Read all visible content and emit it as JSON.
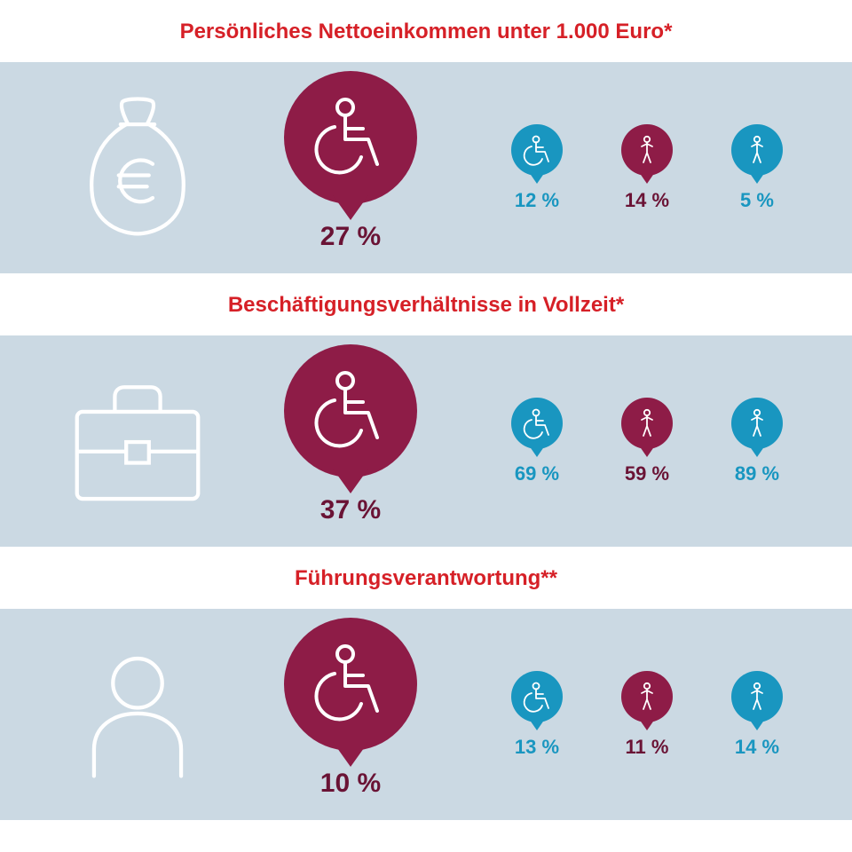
{
  "colors": {
    "panel_bg": "#cbd9e3",
    "white": "#ffffff",
    "heading": "#d62027",
    "maroon": "#8e1c47",
    "maroon_text": "#6a1335",
    "teal": "#1996c0",
    "teal_text": "#1996c0"
  },
  "sizes": {
    "heading_font": 24,
    "big_label_font": 30,
    "small_label_font": 22,
    "big_circle": 150,
    "small_circle": 58
  },
  "sections": [
    {
      "title": "Persönliches Nettoeinkommen unter 1.000 Euro*",
      "topic_icon": "money-bag-euro",
      "big": {
        "icon": "wheelchair",
        "color": "maroon",
        "value": "27 %"
      },
      "small": [
        {
          "icon": "wheelchair",
          "color": "teal",
          "value": "12 %"
        },
        {
          "icon": "person",
          "color": "maroon",
          "value": "14 %"
        },
        {
          "icon": "person",
          "color": "teal",
          "value": "5 %"
        }
      ]
    },
    {
      "title": "Beschäftigungsverhältnisse in Vollzeit*",
      "topic_icon": "briefcase",
      "big": {
        "icon": "wheelchair",
        "color": "maroon",
        "value": "37 %"
      },
      "small": [
        {
          "icon": "wheelchair",
          "color": "teal",
          "value": "69 %"
        },
        {
          "icon": "person",
          "color": "maroon",
          "value": "59 %"
        },
        {
          "icon": "person",
          "color": "teal",
          "value": "89 %"
        }
      ]
    },
    {
      "title": "Führungsverantwortung**",
      "topic_icon": "person-outline",
      "big": {
        "icon": "wheelchair",
        "color": "maroon",
        "value": "10 %"
      },
      "small": [
        {
          "icon": "wheelchair",
          "color": "teal",
          "value": "13 %"
        },
        {
          "icon": "person",
          "color": "maroon",
          "value": "11 %"
        },
        {
          "icon": "person",
          "color": "teal",
          "value": "14 %"
        }
      ]
    }
  ]
}
